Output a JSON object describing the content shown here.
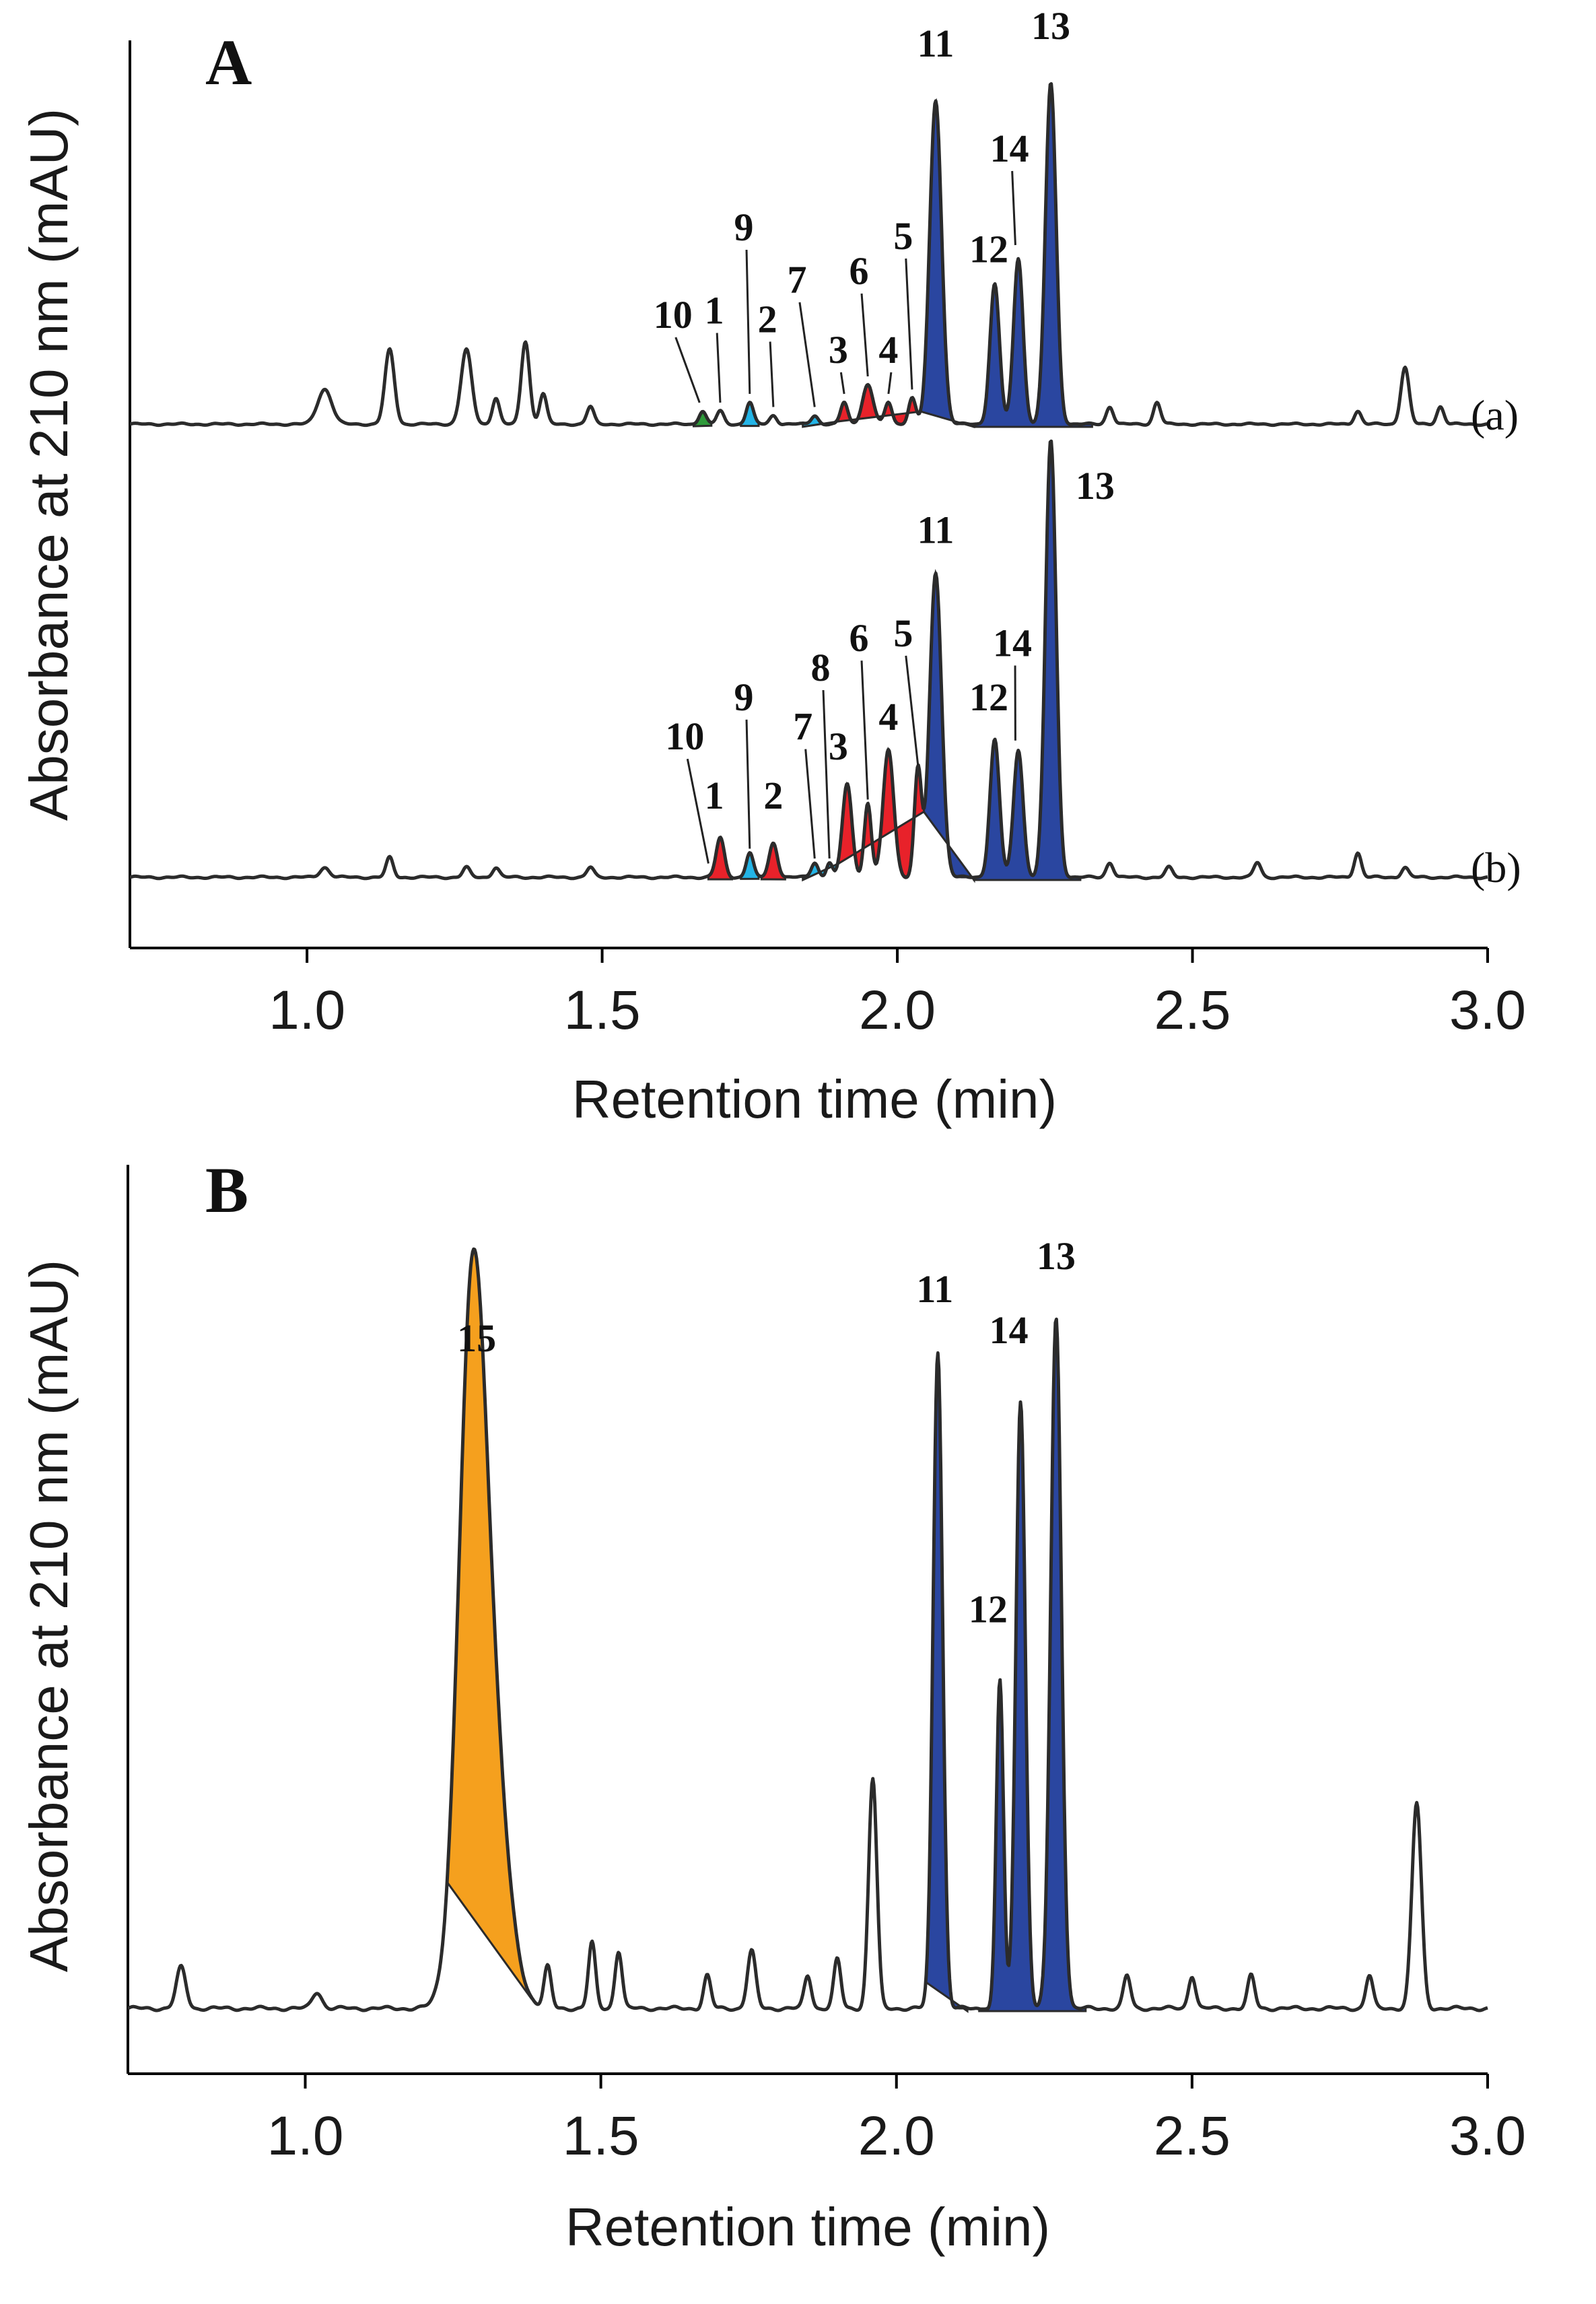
{
  "colors": {
    "blue": "#2a46a0",
    "red": "#e8222a",
    "cyan": "#23b4e6",
    "green": "#2e9a3a",
    "orange": "#f5a01e",
    "trace": "#2b2b2b"
  },
  "chart_data": [
    {
      "type": "line",
      "panel": "A",
      "xlabel": "Retention time (min)",
      "ylabel": "Absorbance at 210 nm (mAU)",
      "xlim": [
        0.7,
        3.0
      ],
      "xticks": [
        "1.0",
        "1.5",
        "2.0",
        "2.5",
        "3.0"
      ],
      "series": [
        {
          "name": "(a)",
          "baseline": 0,
          "peaks": [
            {
              "x": 1.03,
              "h": 8,
              "w": 0.012
            },
            {
              "x": 1.14,
              "h": 17,
              "w": 0.008
            },
            {
              "x": 1.27,
              "h": 17,
              "w": 0.009
            },
            {
              "x": 1.32,
              "h": 6,
              "w": 0.006
            },
            {
              "x": 1.37,
              "h": 19,
              "w": 0.007
            },
            {
              "x": 1.4,
              "h": 7,
              "w": 0.006
            },
            {
              "x": 1.48,
              "h": 4,
              "w": 0.006
            },
            {
              "x": 1.67,
              "h": 3,
              "w": 0.006
            },
            {
              "x": 1.7,
              "h": 3,
              "w": 0.006
            },
            {
              "x": 1.75,
              "h": 5,
              "w": 0.006
            },
            {
              "x": 1.79,
              "h": 2,
              "w": 0.006
            },
            {
              "x": 1.86,
              "h": 2,
              "w": 0.006
            },
            {
              "x": 1.91,
              "h": 5,
              "w": 0.006
            },
            {
              "x": 1.95,
              "h": 9,
              "w": 0.009
            },
            {
              "x": 1.985,
              "h": 5,
              "w": 0.006
            },
            {
              "x": 2.025,
              "h": 6,
              "w": 0.006
            },
            {
              "x": 2.065,
              "h": 74,
              "w": 0.01
            },
            {
              "x": 2.165,
              "h": 32,
              "w": 0.008
            },
            {
              "x": 2.205,
              "h": 38,
              "w": 0.008
            },
            {
              "x": 2.26,
              "h": 78,
              "w": 0.009
            },
            {
              "x": 2.36,
              "h": 4,
              "w": 0.006
            },
            {
              "x": 2.44,
              "h": 5,
              "w": 0.006
            },
            {
              "x": 2.78,
              "h": 3,
              "w": 0.006
            },
            {
              "x": 2.86,
              "h": 13,
              "w": 0.007
            },
            {
              "x": 2.92,
              "h": 4,
              "w": 0.006
            }
          ],
          "regions": [
            {
              "color": "green",
              "x0": 1.655,
              "x1": 1.685
            },
            {
              "color": "cyan",
              "x0": 1.735,
              "x1": 1.765
            },
            {
              "color": "cyan",
              "x0": 1.84,
              "x1": 1.9
            },
            {
              "color": "red",
              "x0": 1.9,
              "x1": 2.04
            },
            {
              "color": "blue",
              "x0": 2.04,
              "x1": 2.13
            },
            {
              "color": "blue",
              "x0": 2.13,
              "x1": 2.33
            }
          ],
          "peak_labels": [
            {
              "text": "10",
              "x": 1.62,
              "h": 22,
              "tipx": 1.665,
              "tiph": 4
            },
            {
              "text": "1",
              "x": 1.69,
              "h": 23,
              "tipx": 1.7,
              "tiph": 4
            },
            {
              "text": "9",
              "x": 1.74,
              "h": 42,
              "tipx": 1.75,
              "tiph": 6
            },
            {
              "text": "2",
              "x": 1.78,
              "h": 21,
              "tipx": 1.79,
              "tiph": 3
            },
            {
              "text": "7",
              "x": 1.83,
              "h": 30,
              "tipx": 1.86,
              "tiph": 3
            },
            {
              "text": "3",
              "x": 1.9,
              "h": 14,
              "tipx": 1.91,
              "tiph": 6
            },
            {
              "text": "6",
              "x": 1.935,
              "h": 32,
              "tipx": 1.95,
              "tiph": 10
            },
            {
              "text": "4",
              "x": 1.985,
              "h": 14,
              "tipx": 1.985,
              "tiph": 6
            },
            {
              "text": "5",
              "x": 2.01,
              "h": 40,
              "tipx": 2.025,
              "tiph": 7
            },
            {
              "text": "11",
              "x": 2.065,
              "h": 84,
              "tipx": null,
              "tiph": null
            },
            {
              "text": "12",
              "x": 2.155,
              "h": 37,
              "tipx": null,
              "tiph": null
            },
            {
              "text": "14",
              "x": 2.19,
              "h": 60,
              "tipx": 2.2,
              "tiph": 40
            },
            {
              "text": "13",
              "x": 2.26,
              "h": 88,
              "tipx": null,
              "tiph": null
            }
          ],
          "label": "(a)"
        },
        {
          "name": "(b)",
          "baseline": 0,
          "peaks": [
            {
              "x": 1.03,
              "h": 2,
              "w": 0.008
            },
            {
              "x": 1.14,
              "h": 4,
              "w": 0.006
            },
            {
              "x": 1.27,
              "h": 2,
              "w": 0.006
            },
            {
              "x": 1.32,
              "h": 2,
              "w": 0.006
            },
            {
              "x": 1.48,
              "h": 2,
              "w": 0.006
            },
            {
              "x": 1.7,
              "h": 8,
              "w": 0.007
            },
            {
              "x": 1.75,
              "h": 5,
              "w": 0.006
            },
            {
              "x": 1.79,
              "h": 7,
              "w": 0.007
            },
            {
              "x": 1.86,
              "h": 3,
              "w": 0.006
            },
            {
              "x": 1.885,
              "h": 3,
              "w": 0.005
            },
            {
              "x": 1.915,
              "h": 19,
              "w": 0.008
            },
            {
              "x": 1.95,
              "h": 15,
              "w": 0.006
            },
            {
              "x": 1.985,
              "h": 26,
              "w": 0.009
            },
            {
              "x": 2.035,
              "h": 22,
              "w": 0.006
            },
            {
              "x": 2.065,
              "h": 62,
              "w": 0.01
            },
            {
              "x": 2.165,
              "h": 28,
              "w": 0.008
            },
            {
              "x": 2.205,
              "h": 26,
              "w": 0.008
            },
            {
              "x": 2.26,
              "h": 89,
              "w": 0.009
            },
            {
              "x": 2.36,
              "h": 3,
              "w": 0.006
            },
            {
              "x": 2.46,
              "h": 2,
              "w": 0.006
            },
            {
              "x": 2.61,
              "h": 3,
              "w": 0.006
            },
            {
              "x": 2.78,
              "h": 5,
              "w": 0.006
            },
            {
              "x": 2.86,
              "h": 2,
              "w": 0.006
            }
          ],
          "regions": [
            {
              "color": "red",
              "x0": 1.68,
              "x1": 1.72
            },
            {
              "color": "cyan",
              "x0": 1.735,
              "x1": 1.765
            },
            {
              "color": "red",
              "x0": 1.77,
              "x1": 1.81
            },
            {
              "color": "cyan",
              "x0": 1.84,
              "x1": 1.9
            },
            {
              "color": "red",
              "x0": 1.9,
              "x1": 2.045
            },
            {
              "color": "blue",
              "x0": 2.045,
              "x1": 2.13
            },
            {
              "color": "blue",
              "x0": 2.13,
              "x1": 2.31
            }
          ],
          "peak_labels": [
            {
              "text": "10",
              "x": 1.64,
              "h": 26,
              "tipx": 1.68,
              "tiph": 2
            },
            {
              "text": "1",
              "x": 1.69,
              "h": 14,
              "tipx": null,
              "tiph": null
            },
            {
              "text": "9",
              "x": 1.74,
              "h": 34,
              "tipx": 1.75,
              "tiph": 5
            },
            {
              "text": "2",
              "x": 1.79,
              "h": 14,
              "tipx": null,
              "tiph": null
            },
            {
              "text": "7",
              "x": 1.84,
              "h": 28,
              "tipx": 1.86,
              "tiph": 3
            },
            {
              "text": "8",
              "x": 1.87,
              "h": 40,
              "tipx": 1.885,
              "tiph": 3
            },
            {
              "text": "3",
              "x": 1.9,
              "h": 24,
              "tipx": null,
              "tiph": null
            },
            {
              "text": "6",
              "x": 1.935,
              "h": 46,
              "tipx": 1.95,
              "tiph": 15
            },
            {
              "text": "4",
              "x": 1.985,
              "h": 30,
              "tipx": null,
              "tiph": null
            },
            {
              "text": "5",
              "x": 2.01,
              "h": 47,
              "tipx": 2.035,
              "tiph": 22
            },
            {
              "text": "11",
              "x": 2.065,
              "h": 68,
              "tipx": null,
              "tiph": null
            },
            {
              "text": "12",
              "x": 2.155,
              "h": 34,
              "tipx": null,
              "tiph": null
            },
            {
              "text": "14",
              "x": 2.195,
              "h": 45,
              "tipx": 2.2,
              "tiph": 27
            },
            {
              "text": "13",
              "x": 2.335,
              "h": 77,
              "tipx": null,
              "tiph": null
            }
          ],
          "label": "(b)"
        }
      ]
    },
    {
      "type": "line",
      "panel": "B",
      "xlabel": "Retention time (min)",
      "ylabel": "Absorbance at 210 nm (mAU)",
      "xlim": [
        0.7,
        3.0
      ],
      "xticks": [
        "1.0",
        "1.5",
        "2.0",
        "2.5",
        "3.0"
      ],
      "series": [
        {
          "name": "B",
          "baseline": 0,
          "peaks": [
            {
              "x": 0.79,
              "h": 5,
              "w": 0.008
            },
            {
              "x": 1.02,
              "h": 2,
              "w": 0.008
            },
            {
              "x": 1.28,
              "h": 62,
              "w": 0.022
            },
            {
              "x": 1.305,
              "h": 40,
              "w": 0.03
            },
            {
              "x": 1.41,
              "h": 5,
              "w": 0.006
            },
            {
              "x": 1.485,
              "h": 8,
              "w": 0.006
            },
            {
              "x": 1.53,
              "h": 7,
              "w": 0.006
            },
            {
              "x": 1.68,
              "h": 4,
              "w": 0.006
            },
            {
              "x": 1.755,
              "h": 7,
              "w": 0.007
            },
            {
              "x": 1.85,
              "h": 4,
              "w": 0.006
            },
            {
              "x": 1.9,
              "h": 6,
              "w": 0.006
            },
            {
              "x": 1.96,
              "h": 28,
              "w": 0.007
            },
            {
              "x": 2.07,
              "h": 80,
              "w": 0.008
            },
            {
              "x": 2.175,
              "h": 40,
              "w": 0.006
            },
            {
              "x": 2.21,
              "h": 74,
              "w": 0.008
            },
            {
              "x": 2.27,
              "h": 84,
              "w": 0.009
            },
            {
              "x": 2.39,
              "h": 4,
              "w": 0.006
            },
            {
              "x": 2.5,
              "h": 4,
              "w": 0.006
            },
            {
              "x": 2.6,
              "h": 4,
              "w": 0.006
            },
            {
              "x": 2.8,
              "h": 4,
              "w": 0.006
            },
            {
              "x": 2.88,
              "h": 25,
              "w": 0.008
            }
          ],
          "regions": [
            {
              "color": "orange",
              "x0": 1.24,
              "x1": 1.38
            },
            {
              "color": "blue",
              "x0": 2.05,
              "x1": 2.12
            },
            {
              "color": "blue",
              "x0": 2.14,
              "x1": 2.32
            }
          ],
          "peak_labels": [
            {
              "text": "15",
              "x": 1.29,
              "h": 80,
              "tipx": null,
              "tiph": null
            },
            {
              "text": "11",
              "x": 2.065,
              "h": 86,
              "tipx": null,
              "tiph": null
            },
            {
              "text": "12",
              "x": 2.155,
              "h": 47,
              "tipx": null,
              "tiph": null
            },
            {
              "text": "14",
              "x": 2.19,
              "h": 81,
              "tipx": null,
              "tiph": null
            },
            {
              "text": "13",
              "x": 2.27,
              "h": 90,
              "tipx": null,
              "tiph": null
            }
          ],
          "label": ""
        }
      ]
    }
  ],
  "panels": {
    "a": {
      "letter": "A",
      "trace_a": "(a)",
      "trace_b": "(b)"
    },
    "b": {
      "letter": "B"
    }
  }
}
